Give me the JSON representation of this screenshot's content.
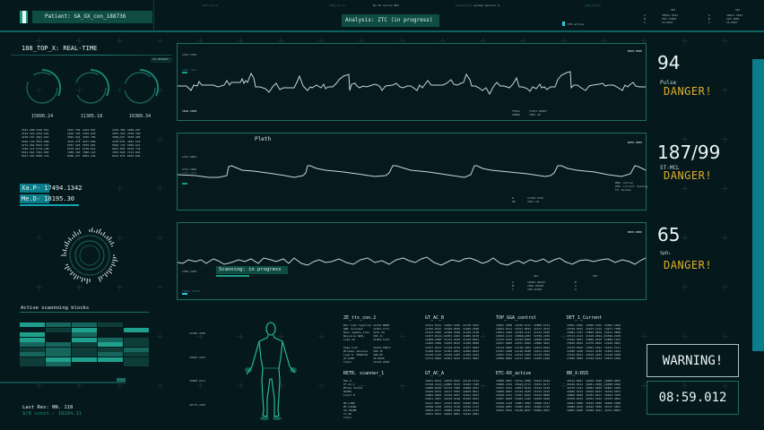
{
  "header": {
    "patient_label": "Patient: GA_GX_con_188736",
    "analysis_label": "Analysis: ZTC (in progress)",
    "top_small": [
      "data_block",
      "data_block",
      "No.78 active BRT",
      "parameters",
      "system section A",
      "data_block"
    ],
    "legend_label": "STR active",
    "right_table_a": {
      "head": "SEC",
      "rows": [
        [
          "A",
          "20815.2241"
        ],
        [
          "B",
          "554.71882"
        ],
        [
          "C",
          "12.0097"
        ]
      ]
    },
    "right_table_b": {
      "head": "SEC",
      "rows": [
        [
          "A",
          "18421.3341"
        ],
        [
          "B",
          "226.3082"
        ],
        [
          "C",
          "15.0097"
        ]
      ]
    }
  },
  "left": {
    "title": "188_TOP_X: REAL-TIME",
    "subtag": "SYS RESOURCE",
    "gauges": [
      {
        "value": "15890.24"
      },
      {
        "value": "11305.18"
      },
      {
        "value": "16389.34"
      }
    ],
    "gauge_cols": [
      [
        "2541.208",
        "3124.518",
        "4218.331",
        "5326.178",
        "6712.092",
        "7204.115",
        "8321.664",
        "9017.203"
      ],
      [
        "1102.551",
        "2334.901",
        "3421.022",
        "4512.880",
        "5621.347",
        "6732.108",
        "7841.905",
        "8950.116"
      ],
      [
        "1823.704",
        "2910.336",
        "3045.921",
        "4156.275",
        "5267.493",
        "6378.012",
        "7489.360",
        "8590.477"
      ],
      [
        "1234.567",
        "2345.678",
        "3456.789",
        "4567.890",
        "5678.901",
        "6789.012",
        "7890.123",
        "8901.234"
      ],
      [
        "1476.309",
        "2587.410",
        "3698.521",
        "4709.632",
        "5810.743",
        "6921.854",
        "7032.965",
        "8143.076"
      ],
      [
        "1658.287",
        "2769.398",
        "3870.409",
        "4981.510",
        "5092.621",
        "6103.732",
        "7214.843",
        "8325.954"
      ]
    ],
    "xa_p": "Xa.P- 17494.1342",
    "me_d": "Me.D- 18195.30",
    "blocks_title": "Active scannning blocks",
    "last_res": "Last Res: NN. 118",
    "ab_const": "A/B const.: 18284.11"
  },
  "waves": {
    "ecg": {
      "top_left": "1210.1540",
      "mid_left": "1580.1024",
      "bottom_left": "1820.2000",
      "top_right": "0000.0000",
      "stats": [
        [
          "TOTAL",
          "13231.20987"
        ],
        [
          "SPEED",
          "1861.18"
        ]
      ]
    },
    "pleth": {
      "title": "Pleth",
      "top_left": "1514.0843",
      "mid_left": "1715.2002",
      "mid_left2": "1484.3044",
      "top_right": "0000.0000",
      "notes": [
        "BMR: Active",
        "PRS: Current reading",
        "T5: Normal"
      ],
      "stats": [
        [
          "D",
          "17340.5332"
        ],
        [
          "HR",
          "1041.18"
        ]
      ]
    },
    "spo2_wave": {
      "scan_label": "Scanning: in progress",
      "mid_left": "1382.1029",
      "bottom_left": "INDEX CHECK",
      "top_right": "0000.0000",
      "stats_head": [
        "SEC",
        "SEC"
      ],
      "stats": [
        [
          "A",
          "19562.46215",
          "B"
        ],
        [
          "B",
          "1892.00320",
          "C"
        ],
        [
          "C",
          "108.02302",
          "A"
        ]
      ]
    }
  },
  "vitals": [
    {
      "value": "94",
      "label": "Pulse",
      "status": "DANGER!"
    },
    {
      "value": "187/99",
      "label": "ST-MCL",
      "status": "DANGER!"
    },
    {
      "value": "65",
      "label": "SpO₂",
      "status": "DANGER!"
    }
  ],
  "body_scan": {
    "ticks": [
      "13780.7048",
      "10840.7032",
      "10680.2111",
      "10770.7460"
    ]
  },
  "tables": [
    {
      "title": "ZE_tts_con.2",
      "rows": [
        "Max load required",
        "DND included",
        "Main update time",
        "Revision N23",
        "Load ID",
        "",
        "Page Info",
        "Minimal advance",
        "Load 0. P9NE7S0",
        "AT.bdRT",
        "Total"
      ],
      "values": [
        "11532.8868",
        "11381.1177",
        "1121.34",
        "102.11",
        "11384.1113",
        "",
        "11632.18617",
        "108.76",
        "108.05",
        "10.8026",
        "11324.2189"
      ]
    },
    {
      "title": "GT_AC_B",
      "cols": [
        [
          "11221.0121",
          "11782.0142",
          "11813.2309",
          "11257.0112",
          "11868.1890",
          "11860.2308",
          "11817.2013",
          "11108.0115",
          "11239.1123",
          "11374.9982"
        ],
        [
          "11853.3109",
          "11598.2810",
          "11600.3380",
          "11853.1601",
          "11142.2910",
          "11830.0015",
          "11140.2216",
          "11181.2091",
          "11640.1203",
          "11502.3421"
        ],
        [
          "11170.3101",
          "11480.2108",
          "11100.2130",
          "11880.0170",
          "11120.0021",
          "11180.0008",
          "11107.5002",
          "11890.0012",
          "11109.2234",
          "11423.3901"
        ]
      ]
    },
    {
      "title": "TOP_GGA_control",
      "cols": [
        [
          "12401.3208",
          "12822.8131",
          "12851.1000",
          "12920.1112",
          "12133.9152",
          "12457.6800",
          "12312.4002",
          "12787.1088",
          "12401.2314",
          "12090.8082"
        ],
        [
          "12239.2117",
          "12321.0012",
          "12780.1127",
          "12000.1001",
          "12330.0005",
          "12017.5002",
          "12118.1001",
          "12140.8108",
          "12339.1003",
          "12217.2001"
        ],
        [
          "12800.5112",
          "12121.4213",
          "12132.5300",
          "12330.2106",
          "12050.3240",
          "12880.3601",
          "12023.0203",
          "12011.2302",
          "12130.1002",
          "12209.1108"
        ]
      ]
    },
    {
      "title": "DET_1_Current",
      "cols": [
        [
          "13821.1002",
          "13330.9101",
          "13082.1107",
          "13712.2112",
          "13182.0001",
          "13820.0402",
          "13270.0810",
          "13480.2100",
          "13120.0011",
          "13380.5009"
        ],
        [
          "13300.1012",
          "13223.1212",
          "13809.3810",
          "13120.4022",
          "13880.2010",
          "13370.0602",
          "13302.1021",
          "13212.4330",
          "13010.2203",
          "13330.0104"
        ],
        [
          "13302.1042",
          "13217.7388",
          "13017.3808",
          "13390.2230",
          "13880.1101",
          "13106.2001",
          "13221.2111",
          "13302.1021",
          "13210.9308",
          "13072.2300"
        ]
      ]
    },
    {
      "title": "RETR. scanner_1",
      "rows": [
        "Max A",
        "VT_AC.1",
        "MTime factor",
        "NGTNO",
        "Limit M",
        "",
        "NT-LINE",
        "MT-SIGNO",
        "AO-TRINE",
        "CT-AO",
        "Total"
      ]
    },
    {
      "title": "GT_AC_A",
      "cols": [
        [
          "14021.0214",
          "14748.1423",
          "14880.8240",
          "14220.0234",
          "14884.9020",
          "14821.3107",
          "14127.0817",
          "14028.1018",
          "14052.8177",
          "14021.0322"
        ],
        [
          "14070.8181",
          "14882.3910",
          "14735.7000",
          "14417.3902",
          "14329.5207",
          "14330.2218",
          "14793.8010",
          "14034.5118",
          "14080.2108",
          "14401.9001"
        ],
        [
          "14110.5114",
          "14182.7180",
          "14008.2201",
          "14820.9811",
          "14101.0332",
          "14350.2401",
          "14038.9002",
          "14230.1113",
          "14322.1212",
          "14120.2001"
        ]
      ]
    },
    {
      "title": "ETC-RX_active",
      "cols": [
        [
          "15800.9087",
          "15800.1234",
          "15021.2101",
          "15800.2801",
          "15920.2131",
          "15287.8200",
          "15040.1120",
          "15160.2001",
          "15203.5291"
        ],
        [
          "15312.2098",
          "15023.2717",
          "15097.0229",
          "15120.2030",
          "15307.0201",
          "15102.1102",
          "15087.2002",
          "15200.4021",
          "15120.8017"
        ],
        [
          "15033.0120",
          "15032.0177",
          "15122.2120",
          "15122.2210",
          "15232.0000",
          "15036.5029",
          "15008.1011",
          "15200.1725",
          "15090.2001"
        ]
      ]
    },
    {
      "title": "BB_X:RS5",
      "cols": [
        [
          "16514.8821",
          "16228.0211",
          "16730.1221",
          "16800.0212",
          "16800.0028",
          "16700.0213",
          "16081.2008",
          "16080.2010",
          "16003.6200"
        ],
        [
          "16020.4398",
          "16001.2008",
          "16003.9209",
          "16020.0233",
          "16785.8217",
          "16702.3012",
          "16220.5280",
          "16220.3080",
          "16180.4221"
        ],
        [
          "16080.0097",
          "16000.2040",
          "16881.3200",
          "16320.0201",
          "16822.3105",
          "16333.4001",
          "16000.1088",
          "16727.2001",
          "16721.8001"
        ]
      ]
    }
  ],
  "status": {
    "warning": "WARNING!",
    "timer": "08:59.012"
  },
  "colors": {
    "background": "#05191d",
    "accent_teal": "#1d9a87",
    "accent_cyan": "#0b7c89",
    "danger": "#e0ad2a",
    "panel_border": "#1f6c63"
  }
}
